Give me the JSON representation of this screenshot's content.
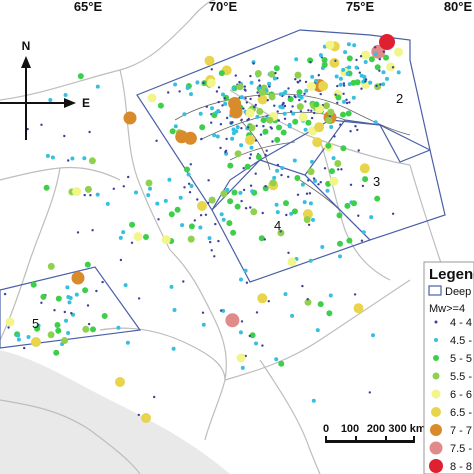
{
  "title": "",
  "grid_labels": [
    "65°E",
    "70°E",
    "75°E",
    "80°E"
  ],
  "compass": {
    "north": "N",
    "east": "E"
  },
  "zones": [
    "2",
    "3",
    "4",
    "5"
  ],
  "legend": {
    "title": "Legend",
    "zone_entry": "Deep",
    "magnitude_header": "Mw>=4",
    "classes": [
      {
        "label": "4 - 4",
        "color": "#3d3f9e"
      },
      {
        "label": "4.5 -",
        "color": "#35bfe0"
      },
      {
        "label": "5 - 5",
        "color": "#3ecf4a"
      },
      {
        "label": "5.5 -",
        "color": "#8fd14f"
      },
      {
        "label": "6 - 6",
        "color": "#f2f58a"
      },
      {
        "label": "6.5 -",
        "color": "#e8d44d"
      },
      {
        "label": "7 - 7",
        "color": "#d98a2b"
      },
      {
        "label": "7.5 -",
        "color": "#e08a8a"
      },
      {
        "label": "8 - 8",
        "color": "#e02030"
      }
    ]
  },
  "scale_bar": {
    "ticks": [
      "0",
      "100",
      "200",
      "300 km"
    ]
  },
  "colors": {
    "background": "#e8e8e8",
    "land": "#ffffff",
    "border": "#c0c0c0",
    "fault": "#666666",
    "zone_outline": "#4a5fa8"
  }
}
